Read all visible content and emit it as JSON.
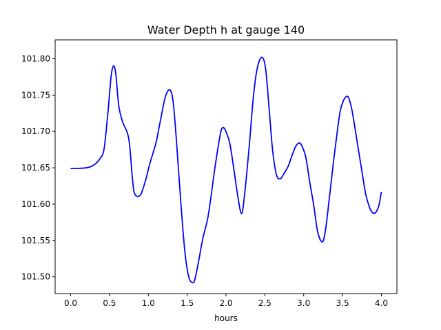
{
  "chart_data": {
    "type": "line",
    "title": "Water Depth h at gauge 140",
    "xlabel": "hours",
    "ylabel": "",
    "xlim": [
      -0.2,
      4.2
    ],
    "ylim": [
      101.477,
      101.826
    ],
    "grid": false,
    "xticks": [
      0.0,
      0.5,
      1.0,
      1.5,
      2.0,
      2.5,
      3.0,
      3.5,
      4.0
    ],
    "xtick_labels": [
      "0.0",
      "0.5",
      "1.0",
      "1.5",
      "2.0",
      "2.5",
      "3.0",
      "3.5",
      "4.0"
    ],
    "yticks": [
      101.5,
      101.55,
      101.6,
      101.65,
      101.7,
      101.75,
      101.8
    ],
    "ytick_labels": [
      "101.50",
      "101.55",
      "101.60",
      "101.65",
      "101.70",
      "101.75",
      "101.80"
    ],
    "series": [
      {
        "color": "#0000ff",
        "x": [
          0.0,
          0.2,
          0.3,
          0.38,
          0.43,
          0.48,
          0.52,
          0.55,
          0.58,
          0.62,
          0.67,
          0.73,
          0.76,
          0.8,
          0.83,
          0.9,
          0.97,
          1.02,
          1.1,
          1.15,
          1.22,
          1.28,
          1.32,
          1.36,
          1.42,
          1.47,
          1.52,
          1.57,
          1.6,
          1.65,
          1.7,
          1.76,
          1.8,
          1.86,
          1.93,
          1.97,
          2.01,
          2.05,
          2.1,
          2.15,
          2.2,
          2.24,
          2.3,
          2.35,
          2.4,
          2.46,
          2.51,
          2.56,
          2.6,
          2.65,
          2.7,
          2.74,
          2.8,
          2.85,
          2.9,
          2.95,
          2.99,
          3.03,
          3.08,
          3.13,
          3.18,
          3.24,
          3.28,
          3.33,
          3.38,
          3.43,
          3.47,
          3.51,
          3.55,
          3.58,
          3.62,
          3.66,
          3.7,
          3.75,
          3.8,
          3.85,
          3.89,
          3.93,
          3.97,
          4.0
        ],
        "y": [
          101.649,
          101.65,
          101.654,
          101.663,
          101.676,
          101.726,
          101.775,
          101.79,
          101.78,
          101.735,
          101.713,
          101.698,
          101.68,
          101.63,
          101.613,
          101.613,
          101.635,
          101.656,
          101.685,
          101.712,
          101.748,
          101.757,
          101.74,
          101.69,
          101.6,
          101.535,
          101.5,
          101.492,
          101.497,
          101.523,
          101.552,
          101.578,
          101.605,
          101.652,
          101.698,
          101.705,
          101.697,
          101.683,
          101.649,
          101.612,
          101.587,
          101.614,
          101.681,
          101.745,
          101.786,
          101.802,
          101.786,
          101.725,
          101.674,
          101.64,
          101.635,
          101.641,
          101.652,
          101.667,
          101.68,
          101.684,
          101.677,
          101.663,
          101.629,
          101.598,
          101.562,
          101.548,
          101.564,
          101.608,
          101.655,
          101.698,
          101.728,
          101.742,
          101.748,
          101.746,
          101.73,
          101.705,
          101.678,
          101.645,
          101.613,
          101.595,
          101.588,
          101.589,
          101.599,
          101.617
        ]
      }
    ]
  }
}
